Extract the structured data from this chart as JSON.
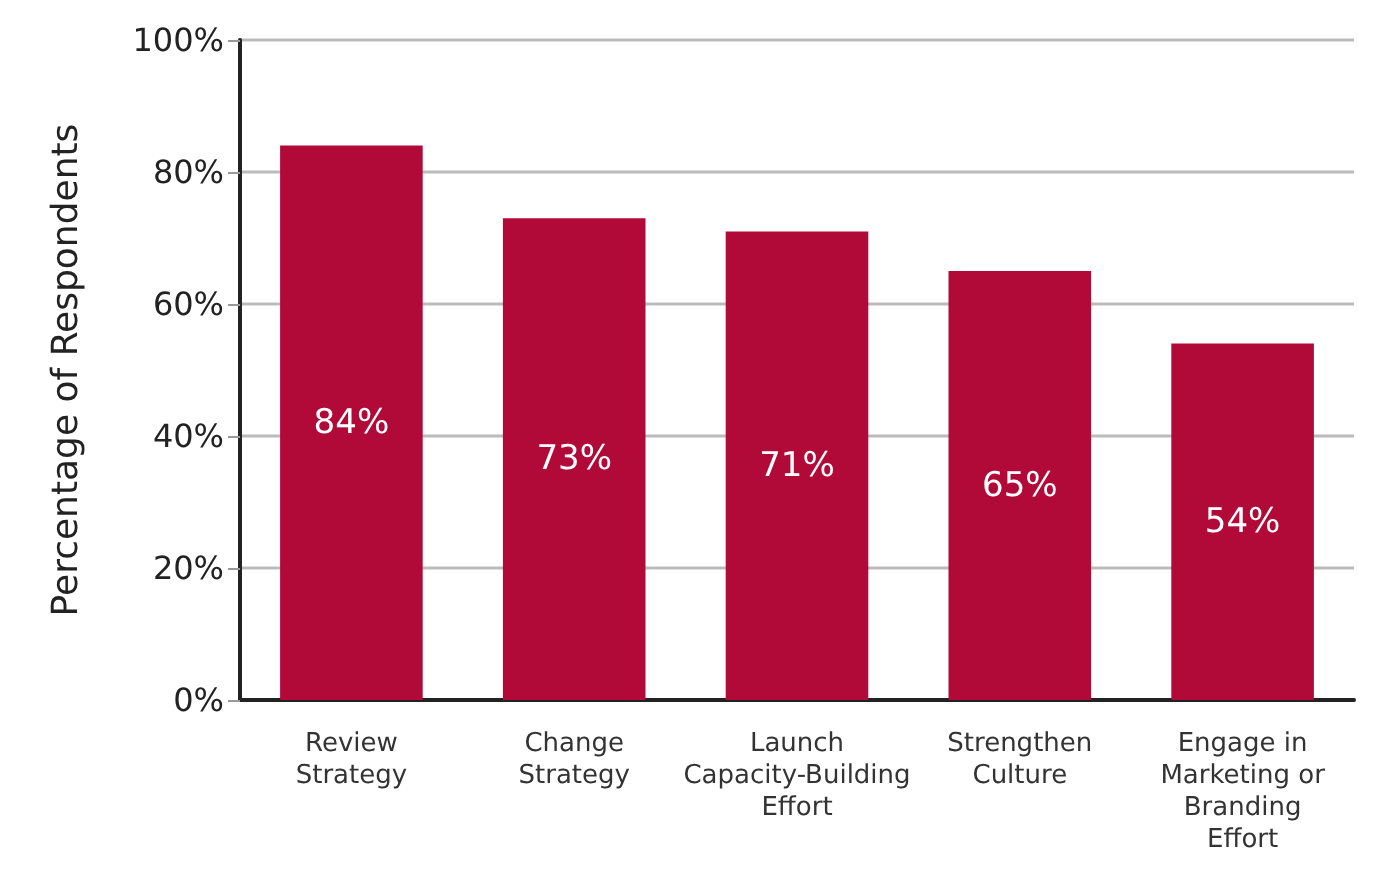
{
  "chart_data": {
    "type": "bar",
    "ylabel": "Percentage of Respondents",
    "categories": [
      "Review Strategy",
      "Change Strategy",
      "Launch Capacity-Building Effort",
      "Strengthen Culture",
      "Engage in Marketing or Branding Effort"
    ],
    "values": [
      84,
      73,
      71,
      65,
      54
    ],
    "value_labels": [
      "84%",
      "73%",
      "71%",
      "65%",
      "54%"
    ],
    "color": "#b10a38",
    "ylim": [
      0,
      100
    ],
    "yticks": [
      {
        "value": 0,
        "label": "0%"
      },
      {
        "value": 20,
        "label": "20%"
      },
      {
        "value": 40,
        "label": "40%"
      },
      {
        "value": 60,
        "label": "60%"
      },
      {
        "value": 80,
        "label": "80%"
      },
      {
        "value": 100,
        "label": "100%"
      }
    ],
    "grid": "y"
  }
}
